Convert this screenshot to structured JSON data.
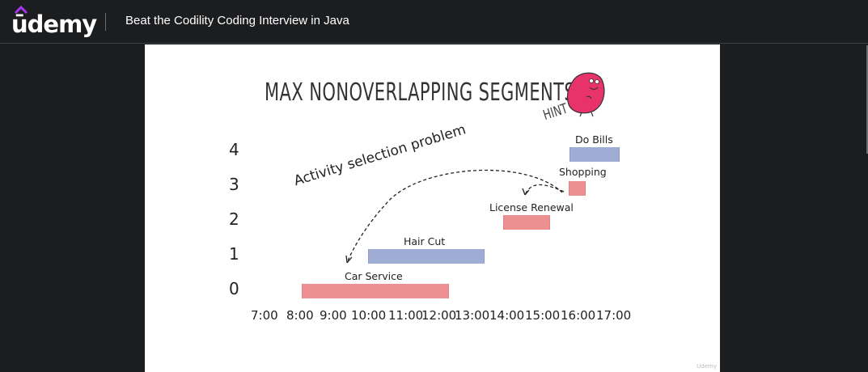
{
  "header": {
    "brand": "ūdemy",
    "course_title": "Beat the Codility Coding Interview in Java"
  },
  "slide": {
    "title": "MAX NONOVERLAPPING SEGMENTS",
    "hint": "HINT",
    "annotation": "Activity selection problem",
    "watermark": "Udemy",
    "y_axis": [
      "4",
      "3",
      "2",
      "1",
      "0"
    ],
    "x_axis": [
      "7:00",
      "8:00",
      "9:00",
      "10:00",
      "11:00",
      "12:00",
      "13:00",
      "14:00",
      "15:00",
      "16:00",
      "17:00"
    ],
    "segments": [
      {
        "label": "Car Service",
        "row": 0,
        "color": "#ec8a8c"
      },
      {
        "label": "Hair Cut",
        "row": 1,
        "color": "#9aa9d3"
      },
      {
        "label": "License Renewal",
        "row": 2,
        "color": "#ec8a8c"
      },
      {
        "label": "Shopping",
        "row": 3,
        "color": "#ec8a8c"
      },
      {
        "label": "Do Bills",
        "row": 4,
        "color": "#9aa9d3"
      }
    ],
    "mascot_color": "#e8336a"
  }
}
